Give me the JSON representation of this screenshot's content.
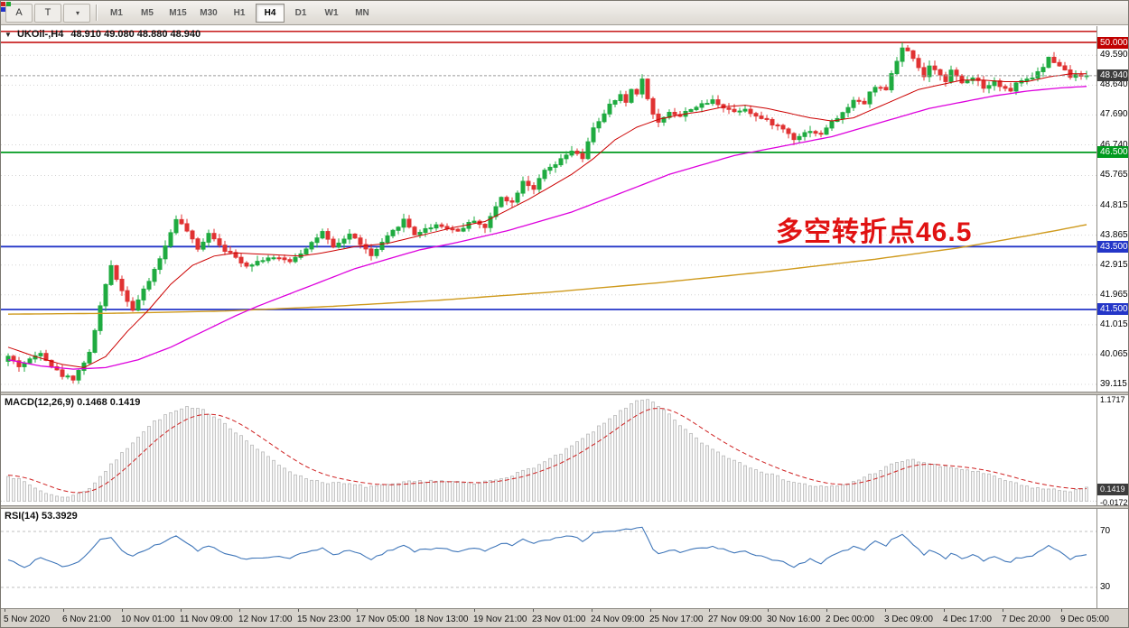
{
  "toolbar": {
    "tool_buttons": [
      {
        "id": "pointer-tool-button",
        "label": "A"
      },
      {
        "id": "text-tool-button",
        "label": "T"
      }
    ],
    "colors_dropdown": {
      "caret": "▾",
      "squares": [
        "#cc2222",
        "#22aa33",
        "#2233cc"
      ]
    },
    "timeframes": [
      {
        "label": "M1",
        "active": false
      },
      {
        "label": "M5",
        "active": false
      },
      {
        "label": "M15",
        "active": false
      },
      {
        "label": "M30",
        "active": false
      },
      {
        "label": "H1",
        "active": false
      },
      {
        "label": "H4",
        "active": true
      },
      {
        "label": "D1",
        "active": false
      },
      {
        "label": "W1",
        "active": false
      },
      {
        "label": "MN",
        "active": false
      }
    ]
  },
  "chart": {
    "dropdown_glyph": "▼",
    "symbol_info": "UKOil-,H4",
    "ohlc": "48.910 49.080 48.880 48.940",
    "annotation": "多空转折点46.5",
    "current_price": "48.940"
  },
  "indicators": {
    "macd": {
      "label": "MACD(12,26,9) 0.1468 0.1419",
      "value_main": 0.1468,
      "value_signal": 0.1419,
      "scale": [
        {
          "text": "1.1717",
          "value": 1.1717,
          "box": false
        },
        {
          "text": "0.1419",
          "value": 0.1419,
          "box": true
        },
        {
          "text": "-0.0172",
          "value": -0.0172,
          "box": false
        }
      ]
    },
    "rsi": {
      "label": "RSI(14) 53.3929",
      "value": 53.3929,
      "scale": [
        {
          "text": "70",
          "value": 70
        },
        {
          "text": "30",
          "value": 30
        }
      ]
    }
  },
  "time_axis": {
    "labels": [
      "5 Nov 2020",
      "6 Nov 21:00",
      "10 Nov 01:00",
      "11 Nov 09:00",
      "12 Nov 17:00",
      "15 Nov 23:00",
      "17 Nov 05:00",
      "18 Nov 13:00",
      "19 Nov 21:00",
      "23 Nov 01:00",
      "24 Nov 09:00",
      "25 Nov 17:00",
      "27 Nov 09:00",
      "30 Nov 16:00",
      "2 Dec 00:00",
      "3 Dec 09:00",
      "4 Dec 17:00",
      "7 Dec 20:00",
      "9 Dec 05:00"
    ]
  },
  "colors": {
    "candle_up": "#1fab40",
    "candle_down": "#e03232",
    "ma_red": "#cc0000",
    "ma_magenta": "#dd00dd",
    "ma_orange": "#cf9a1d",
    "macd_hist_fill": "#f4f4f4",
    "macd_hist_stroke": "#b9b9b9",
    "macd_signal": "#cf2020",
    "rsi_line": "#3f76b9",
    "level_red": "#c00000",
    "level_green": "#009a1e",
    "level_blue": "#2436c8",
    "current_box": "#3c3c3c"
  },
  "chart_data": {
    "type": "candlestick",
    "symbol": "UKOil-",
    "timeframe": "H4",
    "open": 48.91,
    "high": 49.08,
    "low": 48.88,
    "close": 48.94,
    "bars": 200,
    "ylim": [
      39.0,
      50.5
    ],
    "grid_prices": [
      49.59,
      48.64,
      47.69,
      46.74,
      45.765,
      44.815,
      43.865,
      42.915,
      41.965,
      41.015,
      40.065,
      39.115
    ],
    "axis_boxes": [
      {
        "label": "50.000",
        "price": 50.0,
        "color": "#c00000"
      },
      {
        "label": "48.940",
        "price": 48.94,
        "color": "#3c3c3c"
      },
      {
        "label": "46.500",
        "price": 46.5,
        "color": "#009a1e"
      },
      {
        "label": "43.500",
        "price": 43.5,
        "color": "#2436c8"
      },
      {
        "label": "41.500",
        "price": 41.5,
        "color": "#2436c8"
      }
    ],
    "hlines": [
      {
        "price": 50.35,
        "color": "#c00000",
        "width": 1.4
      },
      {
        "price": 50.0,
        "color": "#c00000",
        "width": 1.4
      },
      {
        "price": 46.5,
        "color": "#009a1e",
        "width": 1.8
      },
      {
        "price": 43.5,
        "color": "#2436c8",
        "width": 1.8
      },
      {
        "price": 41.5,
        "color": "#2436c8",
        "width": 1.8
      }
    ],
    "price_path": [
      [
        0,
        40.0
      ],
      [
        2,
        39.7
      ],
      [
        4,
        39.9
      ],
      [
        6,
        40.15
      ],
      [
        8,
        39.7
      ],
      [
        10,
        39.4
      ],
      [
        12,
        39.3
      ],
      [
        13,
        39.55
      ],
      [
        15,
        40.1
      ],
      [
        17,
        41.6
      ],
      [
        19,
        42.9
      ],
      [
        21,
        42.1
      ],
      [
        23,
        41.5
      ],
      [
        26,
        42.4
      ],
      [
        29,
        43.5
      ],
      [
        31,
        44.4
      ],
      [
        33,
        44.0
      ],
      [
        35,
        43.4
      ],
      [
        37,
        43.95
      ],
      [
        40,
        43.4
      ],
      [
        44,
        42.9
      ],
      [
        48,
        43.15
      ],
      [
        52,
        43.05
      ],
      [
        54,
        43.3
      ],
      [
        58,
        43.95
      ],
      [
        60,
        43.45
      ],
      [
        63,
        43.9
      ],
      [
        65,
        43.6
      ],
      [
        67,
        43.2
      ],
      [
        70,
        43.8
      ],
      [
        73,
        44.35
      ],
      [
        75,
        43.9
      ],
      [
        79,
        44.2
      ],
      [
        83,
        44.0
      ],
      [
        86,
        44.35
      ],
      [
        88,
        44.1
      ],
      [
        91,
        45.1
      ],
      [
        93,
        44.9
      ],
      [
        95,
        45.6
      ],
      [
        97,
        45.35
      ],
      [
        99,
        45.9
      ],
      [
        101,
        46.1
      ],
      [
        104,
        46.55
      ],
      [
        106,
        46.3
      ],
      [
        108,
        47.3
      ],
      [
        110,
        47.7
      ],
      [
        111,
        48.0
      ],
      [
        113,
        48.3
      ],
      [
        114,
        48.1
      ],
      [
        115,
        48.5
      ],
      [
        116,
        48.4
      ],
      [
        117,
        48.8
      ],
      [
        119,
        47.7
      ],
      [
        120,
        47.45
      ],
      [
        122,
        47.8
      ],
      [
        124,
        47.65
      ],
      [
        126,
        47.9
      ],
      [
        128,
        48.0
      ],
      [
        130,
        48.15
      ],
      [
        132,
        47.95
      ],
      [
        134,
        47.8
      ],
      [
        136,
        47.9
      ],
      [
        138,
        47.65
      ],
      [
        140,
        47.5
      ],
      [
        143,
        47.25
      ],
      [
        145,
        46.95
      ],
      [
        148,
        47.2
      ],
      [
        150,
        47.05
      ],
      [
        151,
        47.3
      ],
      [
        153,
        47.6
      ],
      [
        155,
        47.9
      ],
      [
        156,
        48.2
      ],
      [
        158,
        48.05
      ],
      [
        159,
        48.4
      ],
      [
        160,
        48.6
      ],
      [
        162,
        48.45
      ],
      [
        163,
        49.0
      ],
      [
        164,
        49.4
      ],
      [
        165,
        49.8
      ],
      [
        166,
        49.7
      ],
      [
        167,
        49.45
      ],
      [
        168,
        49.2
      ],
      [
        169,
        48.9
      ],
      [
        170,
        49.2
      ],
      [
        172,
        49.0
      ],
      [
        173,
        48.8
      ],
      [
        174,
        49.1
      ],
      [
        175,
        48.9
      ],
      [
        176,
        48.7
      ],
      [
        178,
        48.9
      ],
      [
        179,
        48.8
      ],
      [
        180,
        48.55
      ],
      [
        182,
        48.8
      ],
      [
        183,
        48.6
      ],
      [
        185,
        48.45
      ],
      [
        186,
        48.7
      ],
      [
        188,
        48.8
      ],
      [
        189,
        48.9
      ],
      [
        191,
        49.2
      ],
      [
        192,
        49.5
      ],
      [
        194,
        49.3
      ],
      [
        195,
        49.1
      ],
      [
        196,
        48.9
      ],
      [
        197,
        49.0
      ],
      [
        199,
        48.94
      ]
    ],
    "ma_red": [
      [
        0,
        40.3
      ],
      [
        5,
        40.0
      ],
      [
        10,
        39.75
      ],
      [
        14,
        39.65
      ],
      [
        18,
        40.0
      ],
      [
        22,
        40.8
      ],
      [
        26,
        41.5
      ],
      [
        30,
        42.3
      ],
      [
        34,
        42.9
      ],
      [
        38,
        43.2
      ],
      [
        42,
        43.3
      ],
      [
        48,
        43.25
      ],
      [
        54,
        43.2
      ],
      [
        58,
        43.3
      ],
      [
        64,
        43.5
      ],
      [
        70,
        43.6
      ],
      [
        76,
        43.85
      ],
      [
        82,
        44.1
      ],
      [
        88,
        44.3
      ],
      [
        92,
        44.65
      ],
      [
        96,
        45.0
      ],
      [
        100,
        45.4
      ],
      [
        104,
        45.8
      ],
      [
        108,
        46.3
      ],
      [
        112,
        46.9
      ],
      [
        116,
        47.3
      ],
      [
        120,
        47.55
      ],
      [
        124,
        47.7
      ],
      [
        128,
        47.8
      ],
      [
        132,
        47.95
      ],
      [
        136,
        48.0
      ],
      [
        140,
        47.9
      ],
      [
        144,
        47.75
      ],
      [
        148,
        47.6
      ],
      [
        152,
        47.5
      ],
      [
        156,
        47.6
      ],
      [
        160,
        47.9
      ],
      [
        164,
        48.2
      ],
      [
        168,
        48.5
      ],
      [
        172,
        48.65
      ],
      [
        176,
        48.8
      ],
      [
        180,
        48.8
      ],
      [
        184,
        48.75
      ],
      [
        188,
        48.75
      ],
      [
        192,
        48.9
      ],
      [
        196,
        49.0
      ],
      [
        199,
        49.0
      ]
    ],
    "ma_magenta": [
      [
        0,
        39.9
      ],
      [
        6,
        39.7
      ],
      [
        12,
        39.6
      ],
      [
        18,
        39.65
      ],
      [
        24,
        39.9
      ],
      [
        30,
        40.3
      ],
      [
        36,
        40.8
      ],
      [
        42,
        41.3
      ],
      [
        46,
        41.6
      ],
      [
        52,
        42.0
      ],
      [
        58,
        42.4
      ],
      [
        64,
        42.8
      ],
      [
        70,
        43.1
      ],
      [
        76,
        43.4
      ],
      [
        82,
        43.6
      ],
      [
        87,
        43.8
      ],
      [
        92,
        44.0
      ],
      [
        98,
        44.3
      ],
      [
        104,
        44.6
      ],
      [
        110,
        45.0
      ],
      [
        116,
        45.4
      ],
      [
        122,
        45.8
      ],
      [
        128,
        46.1
      ],
      [
        134,
        46.4
      ],
      [
        140,
        46.6
      ],
      [
        146,
        46.8
      ],
      [
        152,
        47.0
      ],
      [
        158,
        47.3
      ],
      [
        164,
        47.6
      ],
      [
        170,
        47.9
      ],
      [
        176,
        48.1
      ],
      [
        182,
        48.3
      ],
      [
        188,
        48.45
      ],
      [
        194,
        48.55
      ],
      [
        199,
        48.6
      ]
    ],
    "ma_orange": [
      [
        0,
        41.35
      ],
      [
        20,
        41.38
      ],
      [
        40,
        41.45
      ],
      [
        60,
        41.6
      ],
      [
        80,
        41.8
      ],
      [
        100,
        42.05
      ],
      [
        120,
        42.35
      ],
      [
        140,
        42.7
      ],
      [
        160,
        43.1
      ],
      [
        175,
        43.45
      ],
      [
        185,
        43.75
      ],
      [
        193,
        44.0
      ],
      [
        199,
        44.2
      ]
    ],
    "macd_hist": [
      [
        0,
        0.3
      ],
      [
        3,
        0.22
      ],
      [
        6,
        0.12
      ],
      [
        9,
        0.05
      ],
      [
        12,
        0.06
      ],
      [
        15,
        0.15
      ],
      [
        18,
        0.35
      ],
      [
        21,
        0.55
      ],
      [
        24,
        0.75
      ],
      [
        27,
        0.92
      ],
      [
        30,
        1.02
      ],
      [
        33,
        1.08
      ],
      [
        36,
        1.05
      ],
      [
        39,
        0.95
      ],
      [
        42,
        0.8
      ],
      [
        46,
        0.6
      ],
      [
        50,
        0.42
      ],
      [
        54,
        0.28
      ],
      [
        58,
        0.22
      ],
      [
        62,
        0.2
      ],
      [
        66,
        0.17
      ],
      [
        70,
        0.18
      ],
      [
        74,
        0.22
      ],
      [
        78,
        0.24
      ],
      [
        82,
        0.22
      ],
      [
        86,
        0.2
      ],
      [
        90,
        0.25
      ],
      [
        94,
        0.32
      ],
      [
        98,
        0.42
      ],
      [
        102,
        0.55
      ],
      [
        106,
        0.72
      ],
      [
        110,
        0.9
      ],
      [
        113,
        1.05
      ],
      [
        116,
        1.15
      ],
      [
        118,
        1.17
      ],
      [
        121,
        1.05
      ],
      [
        124,
        0.88
      ],
      [
        127,
        0.72
      ],
      [
        130,
        0.6
      ],
      [
        133,
        0.5
      ],
      [
        136,
        0.42
      ],
      [
        139,
        0.35
      ],
      [
        142,
        0.28
      ],
      [
        145,
        0.22
      ],
      [
        148,
        0.18
      ],
      [
        151,
        0.16
      ],
      [
        154,
        0.18
      ],
      [
        157,
        0.25
      ],
      [
        160,
        0.33
      ],
      [
        163,
        0.42
      ],
      [
        166,
        0.48
      ],
      [
        169,
        0.45
      ],
      [
        172,
        0.4
      ],
      [
        175,
        0.38
      ],
      [
        178,
        0.35
      ],
      [
        181,
        0.3
      ],
      [
        184,
        0.24
      ],
      [
        187,
        0.18
      ],
      [
        190,
        0.15
      ],
      [
        193,
        0.13
      ],
      [
        196,
        0.12
      ],
      [
        199,
        0.147
      ]
    ],
    "rsi_path": [
      [
        0,
        50
      ],
      [
        3,
        44
      ],
      [
        6,
        52
      ],
      [
        10,
        45
      ],
      [
        13,
        48
      ],
      [
        15,
        56
      ],
      [
        17,
        64
      ],
      [
        19,
        66
      ],
      [
        21,
        56
      ],
      [
        23,
        52
      ],
      [
        26,
        58
      ],
      [
        29,
        63
      ],
      [
        31,
        67
      ],
      [
        33,
        62
      ],
      [
        35,
        56
      ],
      [
        37,
        60
      ],
      [
        40,
        54
      ],
      [
        44,
        50
      ],
      [
        48,
        52
      ],
      [
        52,
        51
      ],
      [
        54,
        54
      ],
      [
        58,
        58
      ],
      [
        60,
        53
      ],
      [
        63,
        57
      ],
      [
        65,
        54
      ],
      [
        67,
        50
      ],
      [
        70,
        56
      ],
      [
        73,
        60
      ],
      [
        75,
        56
      ],
      [
        79,
        58
      ],
      [
        83,
        56
      ],
      [
        86,
        58
      ],
      [
        88,
        56
      ],
      [
        91,
        62
      ],
      [
        93,
        60
      ],
      [
        95,
        64
      ],
      [
        97,
        61
      ],
      [
        99,
        64
      ],
      [
        101,
        65
      ],
      [
        104,
        67
      ],
      [
        106,
        63
      ],
      [
        108,
        69
      ],
      [
        110,
        70
      ],
      [
        113,
        71
      ],
      [
        115,
        72
      ],
      [
        117,
        73
      ],
      [
        119,
        57
      ],
      [
        120,
        54
      ],
      [
        122,
        57
      ],
      [
        124,
        55
      ],
      [
        126,
        57
      ],
      [
        128,
        58
      ],
      [
        130,
        59
      ],
      [
        132,
        57
      ],
      [
        134,
        54
      ],
      [
        136,
        56
      ],
      [
        138,
        53
      ],
      [
        140,
        51
      ],
      [
        143,
        48
      ],
      [
        145,
        45
      ],
      [
        148,
        50
      ],
      [
        150,
        47
      ],
      [
        151,
        50
      ],
      [
        153,
        54
      ],
      [
        155,
        57
      ],
      [
        156,
        60
      ],
      [
        158,
        57
      ],
      [
        159,
        61
      ],
      [
        160,
        63
      ],
      [
        162,
        60
      ],
      [
        163,
        64
      ],
      [
        164,
        66
      ],
      [
        165,
        68
      ],
      [
        167,
        61
      ],
      [
        168,
        57
      ],
      [
        169,
        53
      ],
      [
        170,
        57
      ],
      [
        172,
        54
      ],
      [
        173,
        51
      ],
      [
        174,
        55
      ],
      [
        175,
        53
      ],
      [
        176,
        50
      ],
      [
        178,
        53
      ],
      [
        179,
        52
      ],
      [
        180,
        49
      ],
      [
        182,
        52
      ],
      [
        183,
        50
      ],
      [
        185,
        48
      ],
      [
        186,
        51
      ],
      [
        188,
        52
      ],
      [
        189,
        53
      ],
      [
        191,
        57
      ],
      [
        192,
        60
      ],
      [
        194,
        56
      ],
      [
        195,
        53
      ],
      [
        196,
        50
      ],
      [
        197,
        52
      ],
      [
        199,
        53.4
      ]
    ],
    "rsi_levels": [
      70,
      30
    ]
  }
}
